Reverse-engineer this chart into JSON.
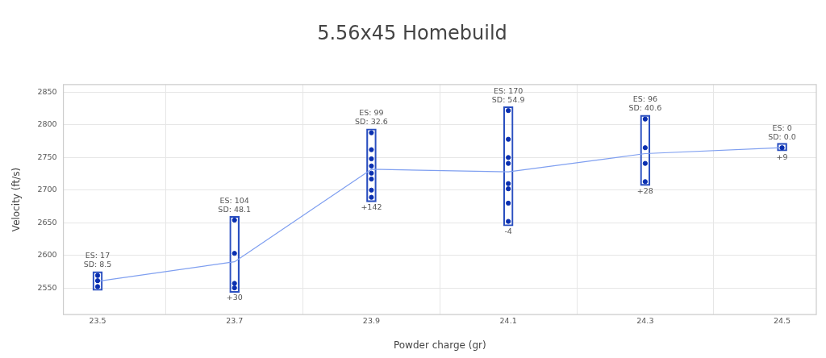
{
  "chart_data": {
    "type": "scatter",
    "title": "5.56x45 Homebuild",
    "xlabel": "Powder charge (gr)",
    "ylabel": "Velocity (ft/s)",
    "xlim": [
      23.45,
      24.55
    ],
    "xticks": [
      23.5,
      23.7,
      23.9,
      24.1,
      24.3,
      24.5
    ],
    "ylim": [
      2509,
      2862
    ],
    "yticks": [
      2550,
      2600,
      2650,
      2700,
      2750,
      2800,
      2850
    ],
    "grid": true,
    "legend": false,
    "series": [
      {
        "type": "bar",
        "color": "#2a4fc0",
        "x": [
          23.5,
          23.7,
          23.9,
          24.1,
          24.3,
          24.5
        ],
        "base": [
          2546,
          2543,
          2682,
          2645,
          2707,
          2760
        ],
        "values": [
          29,
          117,
          112,
          183,
          108,
          12
        ]
      },
      {
        "type": "line",
        "color": "#7f9ff0",
        "marker": "none",
        "x": [
          23.5,
          23.7,
          23.9,
          24.1,
          24.3,
          24.5
        ],
        "values": [
          2560,
          2590,
          2732,
          2728,
          2756,
          2765
        ]
      },
      {
        "color": "#0a2fb0",
        "marker": "circle",
        "x": [
          23.5,
          23.5,
          23.5,
          23.7,
          23.7,
          23.7,
          23.7,
          23.9,
          23.9,
          23.9,
          23.9,
          23.9,
          23.9,
          23.9,
          23.9,
          24.1,
          24.1,
          24.1,
          24.1,
          24.1,
          24.1,
          24.1,
          24.1,
          24.3,
          24.3,
          24.3,
          24.3,
          24.5
        ],
        "values": [
          2569,
          2561,
          2552,
          2654,
          2603,
          2557,
          2550,
          2788,
          2762,
          2748,
          2737,
          2726,
          2717,
          2700,
          2689,
          2822,
          2778,
          2750,
          2741,
          2710,
          2702,
          2680,
          2652,
          2809,
          2765,
          2741,
          2713,
          2765
        ]
      }
    ],
    "annotations": [
      {
        "text": "ES: 17\nSD: 8.5",
        "x": 23.5,
        "y": 2569
      },
      {
        "text": "ES: 104\nSD: 48.1",
        "x": 23.7,
        "y": 2654
      },
      {
        "text": "+30",
        "x": 23.7,
        "y": 2550
      },
      {
        "text": "ES: 99\nSD: 32.6",
        "x": 23.9,
        "y": 2788
      },
      {
        "text": "+142",
        "x": 23.9,
        "y": 2689
      },
      {
        "text": "ES: 170\nSD: 54.9",
        "x": 24.1,
        "y": 2822
      },
      {
        "text": "-4",
        "x": 24.1,
        "y": 2652
      },
      {
        "text": "ES: 96\nSD: 40.6",
        "x": 24.3,
        "y": 2809
      },
      {
        "text": "+28",
        "x": 24.3,
        "y": 2713
      },
      {
        "text": "ES: 0\nSD: 0.0",
        "x": 24.5,
        "y": 2765
      },
      {
        "text": "+9",
        "x": 24.5,
        "y": 2765
      }
    ]
  }
}
